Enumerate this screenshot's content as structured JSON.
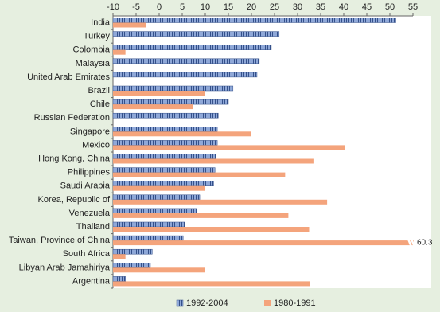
{
  "chart_data": {
    "type": "hbar",
    "categories": [
      "India",
      "Turkey",
      "Colombia",
      "Malaysia",
      "United Arab Emirates",
      "Brazil",
      "Chile",
      "Russian Federation",
      "Singapore",
      "Mexico",
      "Hong Kong, China",
      "Philippines",
      "Saudi Arabia",
      "Korea, Republic of",
      "Venezuela",
      "Thailand",
      "Taiwan, Province of China",
      "South Africa",
      "Libyan Arab Jamahiriya",
      "Argentina"
    ],
    "series": [
      {
        "name": "1992-2004",
        "color": "#8fa8d8",
        "pattern": "vertical-stripes",
        "values": [
          51.3,
          26,
          24.3,
          21.7,
          21.2,
          16,
          15,
          12.8,
          12.6,
          12.6,
          12.3,
          12.1,
          11.8,
          8.8,
          8.1,
          5.6,
          5.2,
          -1.5,
          -1.9,
          -7.3
        ]
      },
      {
        "name": "1980-1991",
        "color": "#f4a47c",
        "values": [
          -2.9,
          null,
          -7.3,
          null,
          null,
          10,
          7.4,
          null,
          20,
          40.3,
          33.6,
          27.3,
          10,
          36.4,
          28,
          32.5,
          60.3,
          -7.3,
          10,
          32.7
        ],
        "value_labels": [
          null,
          null,
          null,
          null,
          null,
          null,
          null,
          null,
          null,
          null,
          null,
          null,
          null,
          null,
          null,
          null,
          "60.3",
          null,
          null,
          null
        ]
      }
    ],
    "xlim": [
      -10,
      55
    ],
    "xticks": [
      -10,
      -5,
      0,
      5,
      10,
      15,
      20,
      25,
      30,
      35,
      40,
      45,
      50,
      55
    ],
    "legend": "bottom"
  }
}
